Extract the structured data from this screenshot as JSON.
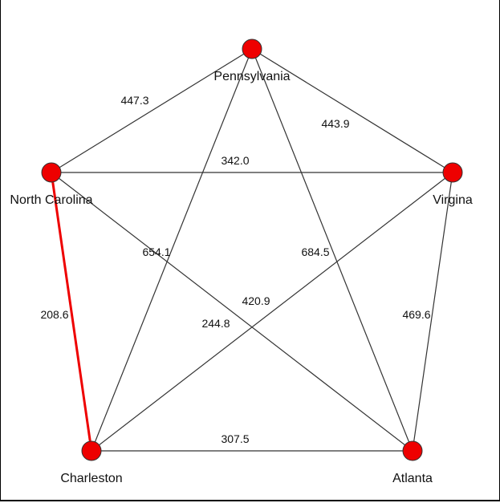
{
  "graph": {
    "nodes": [
      {
        "id": "pa",
        "label": "Pennsylvania"
      },
      {
        "id": "nc",
        "label": "North Carolina"
      },
      {
        "id": "va",
        "label": "Virgina"
      },
      {
        "id": "ch",
        "label": "Charleston"
      },
      {
        "id": "at",
        "label": "Atlanta"
      }
    ],
    "edges": [
      {
        "from": "nc",
        "to": "pa",
        "weight": "447.3",
        "highlight": false
      },
      {
        "from": "pa",
        "to": "va",
        "weight": "443.9",
        "highlight": false
      },
      {
        "from": "nc",
        "to": "va",
        "weight": "342.0",
        "highlight": false
      },
      {
        "from": "pa",
        "to": "ch",
        "weight": "654.1",
        "highlight": false
      },
      {
        "from": "pa",
        "to": "at",
        "weight": "684.5",
        "highlight": false
      },
      {
        "from": "nc",
        "to": "at",
        "weight": "420.9",
        "highlight": false
      },
      {
        "from": "va",
        "to": "ch",
        "weight": "244.8",
        "highlight": false
      },
      {
        "from": "va",
        "to": "at",
        "weight": "469.6",
        "highlight": false
      },
      {
        "from": "nc",
        "to": "ch",
        "weight": "208.6",
        "highlight": true
      },
      {
        "from": "ch",
        "to": "at",
        "weight": "307.5",
        "highlight": false
      }
    ],
    "colors": {
      "node": "#ee0000",
      "highlight_edge": "#ee0000",
      "edge": "#333333"
    }
  }
}
